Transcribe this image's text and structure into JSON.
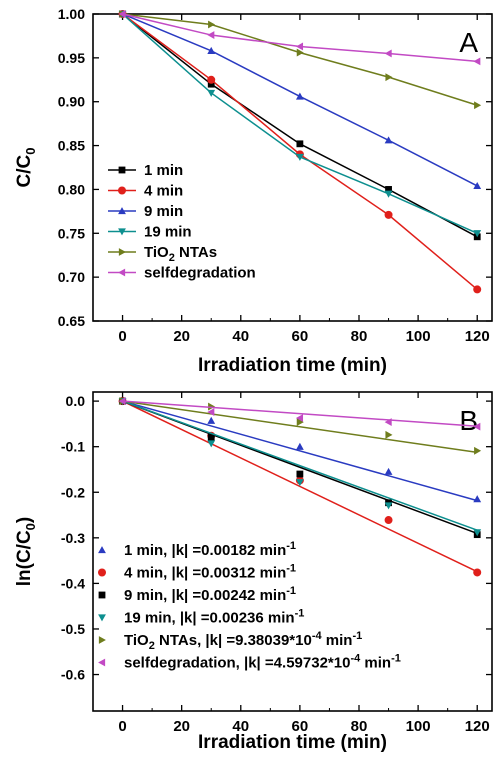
{
  "chart_data": [
    {
      "panel_label": "A",
      "type": "line",
      "xlabel": "Irradiation time (min)",
      "ylabel_main": "C/C",
      "ylabel_sub": "0",
      "xlim": [
        -10,
        125
      ],
      "ylim": [
        0.65,
        1.0
      ],
      "xticks": [
        0,
        20,
        40,
        60,
        80,
        100,
        120
      ],
      "yticks": [
        0.65,
        0.7,
        0.75,
        0.8,
        0.85,
        0.9,
        0.95,
        1.0
      ],
      "ytick_labels": [
        "0.65",
        "0.70",
        "0.75",
        "0.80",
        "0.85",
        "0.90",
        "0.95",
        "1.00"
      ],
      "x": [
        0,
        30,
        60,
        90,
        120
      ],
      "series": [
        {
          "name": "1 min",
          "values": [
            1.0,
            0.92,
            0.852,
            0.8,
            0.746
          ],
          "color": "#000000",
          "marker": "square"
        },
        {
          "name": "4 min",
          "values": [
            1.0,
            0.925,
            0.84,
            0.771,
            0.686
          ],
          "color": "#e0201b",
          "marker": "circle"
        },
        {
          "name": "9 min",
          "values": [
            1.0,
            0.958,
            0.906,
            0.856,
            0.804
          ],
          "color": "#2a3bc1",
          "marker": "triangle-up"
        },
        {
          "name": "19 min",
          "values": [
            1.0,
            0.91,
            0.837,
            0.795,
            0.75
          ],
          "color": "#0d8f8f",
          "marker": "triangle-down"
        },
        {
          "name": "TiO2 NTAs",
          "name_parts": [
            "TiO",
            "2",
            " NTAs"
          ],
          "values": [
            1.0,
            0.988,
            0.956,
            0.928,
            0.896
          ],
          "color": "#6f7d1d",
          "marker": "triangle-right"
        },
        {
          "name": "selfdegradation",
          "values": [
            1.0,
            0.976,
            0.963,
            0.955,
            0.946
          ],
          "color": "#c24ac4",
          "marker": "triangle-left"
        }
      ],
      "legend_position": "bottom-left"
    },
    {
      "panel_label": "B",
      "type": "scatter",
      "xlabel": "Irradiation time (min)",
      "ylabel_main": "ln(C/C",
      "ylabel_sub": "0",
      "ylabel_end": ")",
      "xlim": [
        -10,
        125
      ],
      "ylim": [
        -0.68,
        0.02
      ],
      "xticks": [
        0,
        20,
        40,
        60,
        80,
        100,
        120
      ],
      "yticks": [
        0.0,
        -0.1,
        -0.2,
        -0.3,
        -0.4,
        -0.5,
        -0.6
      ],
      "ytick_labels": [
        "0.0",
        "-0.1",
        "-0.2",
        "-0.3",
        "-0.4",
        "-0.5",
        "-0.6"
      ],
      "x": [
        0,
        30,
        60,
        90,
        120
      ],
      "series": [
        {
          "legend_text": "1 min,  |k| =0.00182 min",
          "values": [
            0,
            -0.043,
            -0.1,
            -0.155,
            -0.215
          ],
          "slope": -0.00182,
          "color": "#2a3bc1",
          "marker": "triangle-up"
        },
        {
          "legend_text": "4 min,  |k| =0.00312 min",
          "values": [
            0,
            -0.076,
            -0.174,
            -0.261,
            -0.376
          ],
          "slope": -0.00312,
          "color": "#e0201b",
          "marker": "circle"
        },
        {
          "legend_text": "9 min,  |k| =0.00242 min",
          "values": [
            0,
            -0.079,
            -0.16,
            -0.223,
            -0.293
          ],
          "slope": -0.00242,
          "color": "#000000",
          "marker": "square"
        },
        {
          "legend_text": "19 min,  |k| =0.00236 min",
          "values": [
            0,
            -0.093,
            -0.178,
            -0.229,
            -0.288
          ],
          "slope": -0.00236,
          "color": "#0d8f8f",
          "marker": "triangle-down"
        },
        {
          "legend_text": "TiO2 NTAs, |k| =9.38039*10-4 min",
          "legend_parts": [
            "TiO",
            "2",
            " NTAs, |k| =9.38039*10",
            "-4",
            " min",
            "-1"
          ],
          "values": [
            0,
            -0.012,
            -0.046,
            -0.074,
            -0.109
          ],
          "slope": -0.000938039,
          "color": "#6f7d1d",
          "marker": "triangle-right"
        },
        {
          "legend_text": "selfdegradation, |k| =4.59732*10-4 min",
          "legend_parts": [
            "selfdegradation, |k| =4.59732*10",
            "-4",
            " min",
            "-1"
          ],
          "values": [
            0,
            -0.024,
            -0.037,
            -0.046,
            -0.056
          ],
          "slope": -0.000459732,
          "color": "#c24ac4",
          "marker": "triangle-left"
        }
      ],
      "legend_position": "bottom-left"
    }
  ]
}
